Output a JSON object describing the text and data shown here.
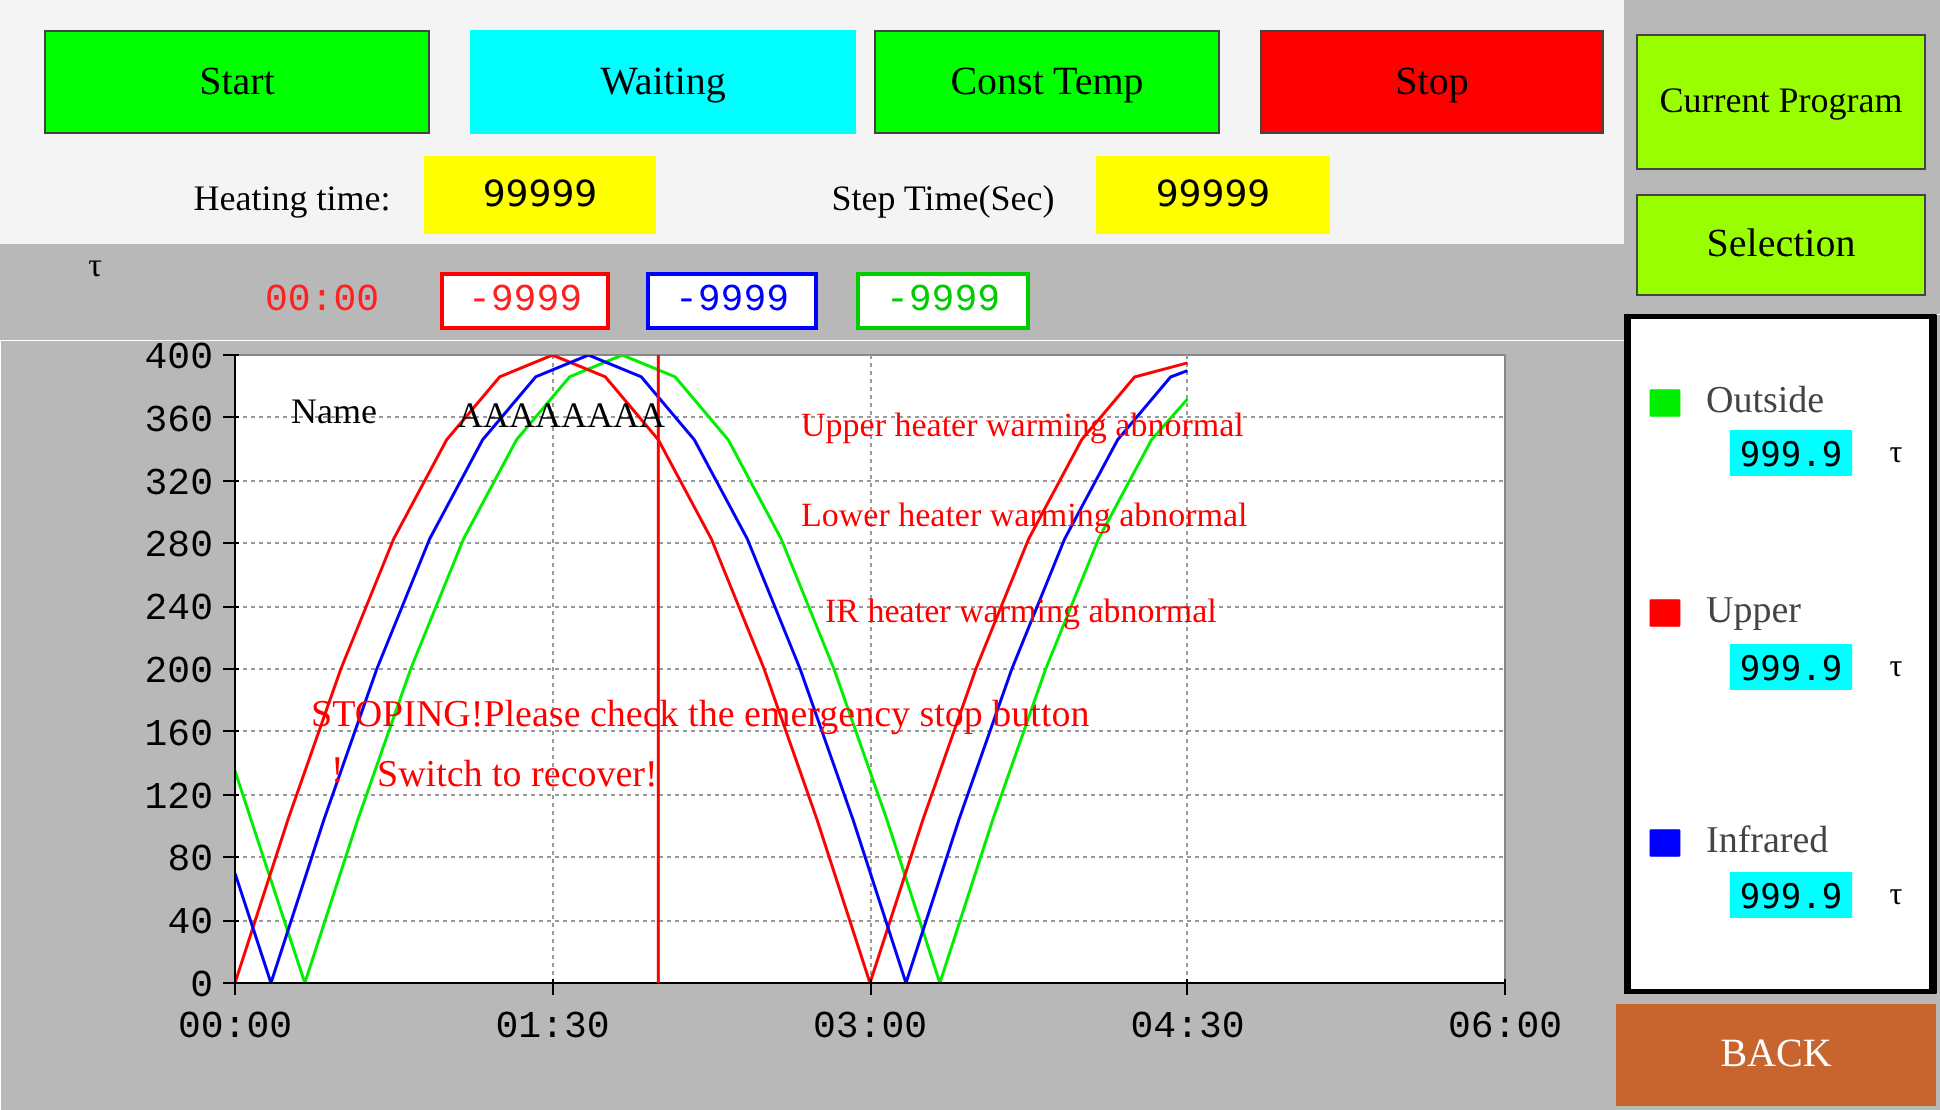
{
  "chart_data": {
    "type": "line",
    "ylabel": "τ",
    "xlim": [
      0,
      6
    ],
    "xticks": [
      {
        "value": 0,
        "label": "00:00"
      },
      {
        "value": 1.5,
        "label": "01:30"
      },
      {
        "value": 3,
        "label": "03:00"
      },
      {
        "value": 4.5,
        "label": "04:30"
      },
      {
        "value": 6,
        "label": "06:00"
      }
    ],
    "ylim": [
      0,
      400
    ],
    "yticks": [
      0,
      40,
      80,
      120,
      160,
      200,
      240,
      280,
      320,
      360,
      400
    ],
    "grid": true,
    "legend": "right",
    "marker": "none",
    "line_style": "solid",
    "series": [
      {
        "name": "Outside",
        "color": "#00ee00",
        "x": [
          0,
          0.33,
          0.58,
          0.83,
          1.08,
          1.33,
          1.58,
          1.83,
          2.08,
          2.33,
          2.58,
          2.83,
          3.08,
          3.33,
          3.58,
          3.83,
          4.08,
          4.33,
          4.5
        ],
        "values": [
          135,
          0,
          104,
          200,
          283,
          346,
          386,
          400,
          386,
          346,
          283,
          200,
          104,
          0,
          104,
          200,
          283,
          346,
          372
        ]
      },
      {
        "name": "Upper",
        "color": "#ff0000",
        "x": [
          0,
          0.25,
          0.5,
          0.75,
          1,
          1.25,
          1.5,
          1.75,
          2,
          2.25,
          2.5,
          2.75,
          3,
          3.25,
          3.5,
          3.75,
          4,
          4.25,
          4.5
        ],
        "values": [
          0,
          104,
          200,
          283,
          346,
          386,
          400,
          386,
          346,
          283,
          200,
          104,
          0,
          104,
          200,
          283,
          346,
          386,
          395
        ]
      },
      {
        "name": "Infrared",
        "color": "#0000ff",
        "x": [
          0,
          0.17,
          0.42,
          0.67,
          0.92,
          1.17,
          1.42,
          1.67,
          1.92,
          2.17,
          2.42,
          2.67,
          2.92,
          3.17,
          3.42,
          3.67,
          3.92,
          4.17,
          4.42,
          4.5
        ],
        "values": [
          70,
          0,
          104,
          200,
          283,
          346,
          386,
          400,
          386,
          346,
          283,
          200,
          104,
          0,
          104,
          200,
          283,
          346,
          386,
          390
        ]
      }
    ],
    "ref_lines": [
      {
        "axis": "x",
        "value": 2,
        "label": null,
        "color": "#ff0000"
      }
    ],
    "annotations": [
      "Start",
      "Waiting",
      "Const Temp",
      "Stop",
      "Current Program",
      "Selection",
      "Heating time:",
      "99999",
      "Step Time(Sec)",
      "99999",
      "00:00",
      "-9999",
      "-9999",
      "-9999",
      "Name",
      "AAAAAAAA",
      "Upper heater warming abnormal",
      "Lower heater warming abnormal",
      "IR heater warming abnormal",
      "STOPING!Please check the emergency stop button",
      "!",
      "Switch to recover!",
      "999.9",
      "999.9",
      "999.9",
      "τ",
      "τ",
      "τ",
      "BACK"
    ]
  }
}
